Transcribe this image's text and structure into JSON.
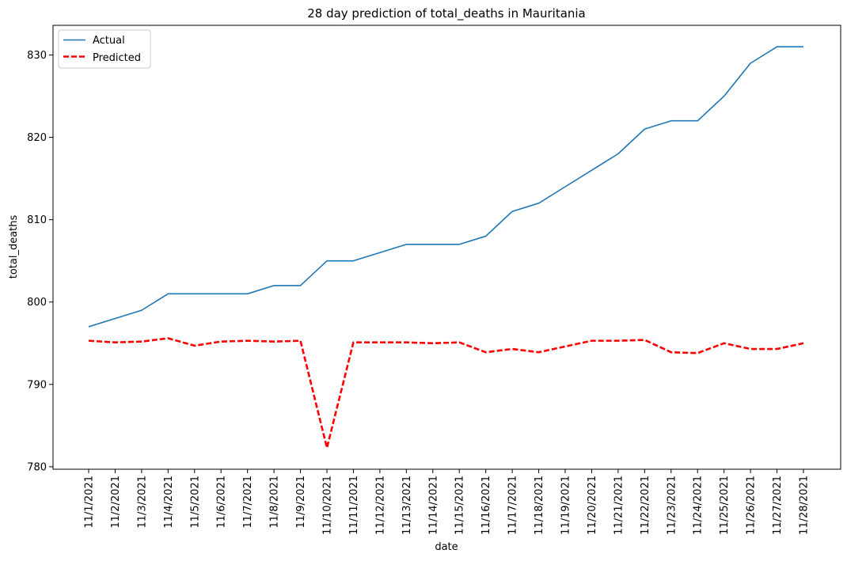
{
  "chart_data": {
    "type": "line",
    "title": "28 day prediction of total_deaths in Mauritania",
    "xlabel": "date",
    "ylabel": "total_deaths",
    "ylim": [
      779.7,
      833.6
    ],
    "yticks": [
      780,
      790,
      800,
      810,
      820,
      830
    ],
    "grid": false,
    "legend_position": "top-left",
    "x": [
      "11/1/2021",
      "11/2/2021",
      "11/3/2021",
      "11/4/2021",
      "11/5/2021",
      "11/6/2021",
      "11/7/2021",
      "11/8/2021",
      "11/9/2021",
      "11/10/2021",
      "11/11/2021",
      "11/12/2021",
      "11/13/2021",
      "11/14/2021",
      "11/15/2021",
      "11/16/2021",
      "11/17/2021",
      "11/18/2021",
      "11/19/2021",
      "11/20/2021",
      "11/21/2021",
      "11/22/2021",
      "11/23/2021",
      "11/24/2021",
      "11/25/2021",
      "11/26/2021",
      "11/27/2021",
      "11/28/2021"
    ],
    "series": [
      {
        "name": "Actual",
        "color": "#1f77b4",
        "style": "solid",
        "values": [
          797,
          798,
          799,
          801,
          801,
          801,
          801,
          802,
          802,
          805,
          805,
          806,
          807,
          807,
          807,
          808,
          811,
          812,
          814,
          816,
          818,
          821,
          822,
          822,
          825,
          829,
          831,
          831
        ]
      },
      {
        "name": "Predicted",
        "color": "#ff0000",
        "style": "dashed",
        "values": [
          795.3,
          795.1,
          795.2,
          795.6,
          794.7,
          795.2,
          795.3,
          795.2,
          795.3,
          782.3,
          795.1,
          795.1,
          795.1,
          795.0,
          795.1,
          793.9,
          794.3,
          793.9,
          794.6,
          795.3,
          795.3,
          795.4,
          793.9,
          793.8,
          795.0,
          794.3,
          794.3,
          795.0
        ]
      }
    ]
  }
}
